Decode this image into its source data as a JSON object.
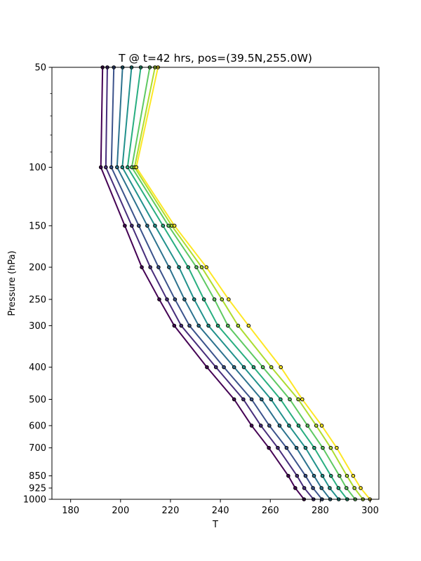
{
  "chart_data": {
    "type": "line",
    "title": "T @ t=42 hrs, pos=(39.5N,255.0W)",
    "xlabel": "T",
    "ylabel": "Pressure (hPa)",
    "xlim": [
      172.5,
      303.5
    ],
    "ylim": [
      1000,
      50
    ],
    "y_scale": "log",
    "grid": false,
    "legend": "none",
    "x_ticks": [
      180,
      200,
      220,
      240,
      260,
      280,
      300
    ],
    "y_ticks": [
      50,
      100,
      150,
      200,
      250,
      300,
      400,
      500,
      600,
      700,
      850,
      925,
      1000
    ],
    "y_minor_ticks": [
      60,
      70,
      80,
      90
    ],
    "pressure_levels": [
      50,
      100,
      150,
      200,
      250,
      300,
      400,
      500,
      600,
      700,
      850,
      925,
      1000
    ],
    "colors": [
      "#440154",
      "#472d7b",
      "#3b528b",
      "#2c728e",
      "#21918c",
      "#28ae80",
      "#5ec962",
      "#addc30",
      "#fde725"
    ],
    "series": [
      {
        "values": [
          192.8,
          192.1,
          201.7,
          208.5,
          215.5,
          221.5,
          234.6,
          245.5,
          252.5,
          259.4,
          267.2,
          270.0,
          273.5
        ]
      },
      {
        "values": [
          194.7,
          194.1,
          204.5,
          211.9,
          218.6,
          224.3,
          238.2,
          249.2,
          256.2,
          263.0,
          270.7,
          273.6,
          277.3
        ]
      },
      {
        "values": [
          197.3,
          196.3,
          207.3,
          215.2,
          221.8,
          227.6,
          241.4,
          252.5,
          259.6,
          266.5,
          274.1,
          277.1,
          280.7
        ]
      },
      {
        "values": [
          200.8,
          198.6,
          210.7,
          219.4,
          225.6,
          231.3,
          245.5,
          256.5,
          263.7,
          270.5,
          277.5,
          280.5,
          284.0
        ]
      },
      {
        "values": [
          204.4,
          200.7,
          213.8,
          223.4,
          229.5,
          235.2,
          249.4,
          260.3,
          267.5,
          274.1,
          280.9,
          283.8,
          287.4
        ]
      },
      {
        "values": [
          208.1,
          202.8,
          217.0,
          227.1,
          233.4,
          239.0,
          253.3,
          264.1,
          271.3,
          277.6,
          284.3,
          287.3,
          290.8
        ]
      },
      {
        "values": [
          211.7,
          204.5,
          219.2,
          230.4,
          237.6,
          243.0,
          257.0,
          267.8,
          274.9,
          281.0,
          287.7,
          290.5,
          294.0
        ]
      },
      {
        "values": [
          213.8,
          205.6,
          220.5,
          232.5,
          240.6,
          247.1,
          260.4,
          271.2,
          278.4,
          284.2,
          290.7,
          293.7,
          297.1
        ]
      },
      {
        "values": [
          215.0,
          206.3,
          221.6,
          234.4,
          243.3,
          251.3,
          264.2,
          272.8,
          280.6,
          286.6,
          293.2,
          296.2,
          299.9
        ]
      }
    ]
  }
}
